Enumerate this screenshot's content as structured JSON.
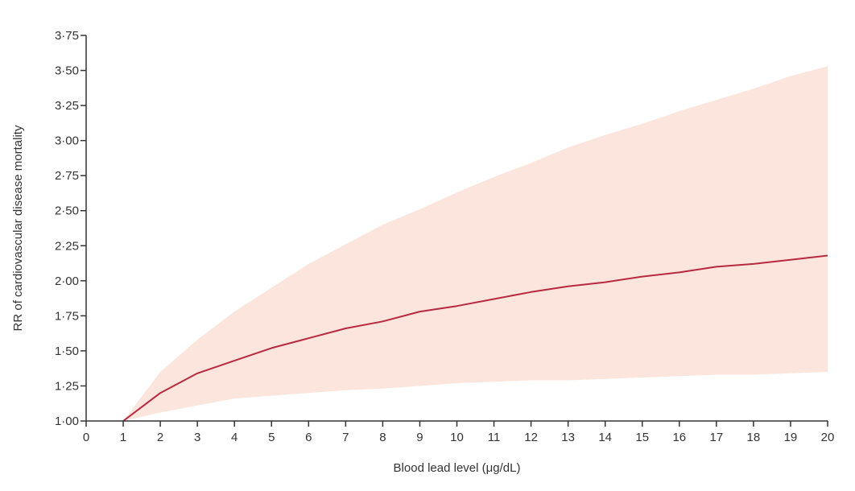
{
  "chart_data": {
    "type": "line",
    "xlabel": "Blood lead level (μg/dL)",
    "ylabel": "RR of cardiovascular disease mortality",
    "xlim": [
      0,
      20
    ],
    "ylim": [
      1.0,
      3.75
    ],
    "x_ticks": [
      0,
      1,
      2,
      3,
      4,
      5,
      6,
      7,
      8,
      9,
      10,
      11,
      12,
      13,
      14,
      15,
      16,
      17,
      18,
      19,
      20
    ],
    "x_tick_labels": [
      "0",
      "1",
      "2",
      "3",
      "4",
      "5",
      "6",
      "7",
      "8",
      "9",
      "10",
      "11",
      "12",
      "13",
      "14",
      "15",
      "16",
      "17",
      "18",
      "19",
      "20"
    ],
    "y_ticks": [
      1.0,
      1.25,
      1.5,
      1.75,
      2.0,
      2.25,
      2.5,
      2.75,
      3.0,
      3.25,
      3.5,
      3.75
    ],
    "y_tick_labels": [
      "1·00",
      "1·25",
      "1·50",
      "1·75",
      "2·00",
      "2·25",
      "2·50",
      "2·75",
      "3·00",
      "3·25",
      "3·50",
      "3·75"
    ],
    "grid": false,
    "series": [
      {
        "x": [
          1,
          2,
          3,
          4,
          5,
          6,
          7,
          8,
          9,
          10,
          11,
          12,
          13,
          14,
          15,
          16,
          17,
          18,
          19,
          20
        ],
        "y": [
          1.0,
          1.2,
          1.34,
          1.43,
          1.52,
          1.59,
          1.66,
          1.71,
          1.78,
          1.82,
          1.87,
          1.92,
          1.96,
          1.99,
          2.03,
          2.06,
          2.1,
          2.12,
          2.15,
          2.18
        ],
        "lower": [
          1.0,
          1.06,
          1.11,
          1.16,
          1.18,
          1.2,
          1.22,
          1.23,
          1.25,
          1.27,
          1.28,
          1.29,
          1.29,
          1.3,
          1.31,
          1.32,
          1.33,
          1.33,
          1.34,
          1.35
        ],
        "upper": [
          1.0,
          1.35,
          1.58,
          1.78,
          1.95,
          2.12,
          2.26,
          2.4,
          2.51,
          2.63,
          2.74,
          2.84,
          2.95,
          3.04,
          3.12,
          3.21,
          3.29,
          3.37,
          3.46,
          3.53
        ]
      }
    ],
    "colors": {
      "line": "#b8283f",
      "band": "#fbe5dc",
      "axis": "#333333"
    }
  }
}
